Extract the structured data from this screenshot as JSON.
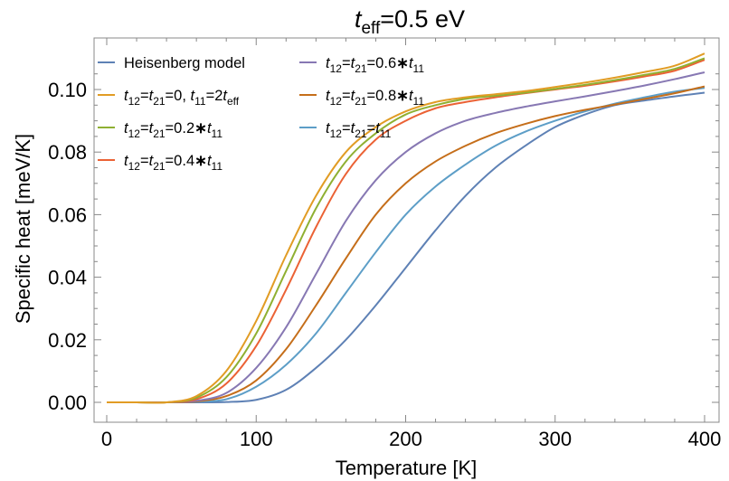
{
  "chart_data": {
    "type": "line",
    "title": {
      "main": "t",
      "sub": "eff",
      "rest": "=0.5 eV"
    },
    "xlabel": "Temperature [K]",
    "ylabel": "Specific heat [meV/K]",
    "xlim": [
      0,
      400
    ],
    "ylim": [
      0,
      0.11
    ],
    "xticks": [
      0,
      100,
      200,
      300,
      400
    ],
    "xtick_labels": [
      "0",
      "100",
      "200",
      "300",
      "400"
    ],
    "yticks": [
      0,
      0.02,
      0.04,
      0.06,
      0.08,
      0.1
    ],
    "ytick_labels": [
      "0.00",
      "0.02",
      "0.04",
      "0.06",
      "0.08",
      "0.10"
    ],
    "grid": false,
    "legend_position": "top-left",
    "legend_columns": 2,
    "x": [
      0,
      20,
      40,
      60,
      80,
      100,
      120,
      140,
      160,
      180,
      200,
      220,
      240,
      260,
      280,
      300,
      320,
      340,
      360,
      380,
      400
    ],
    "series": [
      {
        "name": "Heisenberg model",
        "label": [
          {
            "t": "Heisenberg model"
          }
        ],
        "color": "#5e81b5",
        "values": [
          0,
          0,
          0,
          0,
          0.0001,
          0.0008,
          0.004,
          0.011,
          0.02,
          0.031,
          0.043,
          0.055,
          0.066,
          0.075,
          0.082,
          0.088,
          0.092,
          0.095,
          0.0965,
          0.0978,
          0.099
        ]
      },
      {
        "name": "t12=t21=0, t11=2teff",
        "label": [
          {
            "t": "t",
            "i": true
          },
          {
            "t": "12",
            "s": "sub"
          },
          {
            "t": "="
          },
          {
            "t": "t",
            "i": true
          },
          {
            "t": "21",
            "s": "sub"
          },
          {
            "t": "=0, "
          },
          {
            "t": "t",
            "i": true
          },
          {
            "t": "11",
            "s": "sub"
          },
          {
            "t": "=2"
          },
          {
            "t": "t",
            "i": true
          },
          {
            "t": "eff",
            "s": "sub"
          }
        ],
        "color": "#e19c24",
        "values": [
          0,
          0,
          0,
          0.002,
          0.01,
          0.026,
          0.047,
          0.066,
          0.08,
          0.088,
          0.093,
          0.096,
          0.0975,
          0.0985,
          0.0995,
          0.1008,
          0.1022,
          0.1038,
          0.1056,
          0.1076,
          0.1115
        ]
      },
      {
        "name": "t12=t21=0.2*t11",
        "label": [
          {
            "t": "t",
            "i": true
          },
          {
            "t": "12",
            "s": "sub"
          },
          {
            "t": "="
          },
          {
            "t": "t",
            "i": true
          },
          {
            "t": "21",
            "s": "sub"
          },
          {
            "t": "=0.2"
          },
          {
            "t": "∗",
            "b": true
          },
          {
            "t": "t",
            "i": true
          },
          {
            "t": "11",
            "s": "sub"
          }
        ],
        "color": "#8fb032",
        "values": [
          0,
          0,
          0,
          0.0015,
          0.008,
          0.022,
          0.042,
          0.062,
          0.077,
          0.086,
          0.092,
          0.095,
          0.097,
          0.098,
          0.099,
          0.1002,
          0.1015,
          0.103,
          0.1047,
          0.1066,
          0.11
        ]
      },
      {
        "name": "t12=t21=0.4*t11",
        "label": [
          {
            "t": "t",
            "i": true
          },
          {
            "t": "12",
            "s": "sub"
          },
          {
            "t": "="
          },
          {
            "t": "t",
            "i": true
          },
          {
            "t": "21",
            "s": "sub"
          },
          {
            "t": "=0.4"
          },
          {
            "t": "∗",
            "b": true
          },
          {
            "t": "t",
            "i": true
          },
          {
            "t": "11",
            "s": "sub"
          }
        ],
        "color": "#eb6235",
        "values": [
          0,
          0,
          0,
          0.001,
          0.006,
          0.018,
          0.036,
          0.056,
          0.073,
          0.084,
          0.09,
          0.094,
          0.096,
          0.0975,
          0.0988,
          0.1,
          0.1012,
          0.1026,
          0.1042,
          0.106,
          0.1095
        ]
      },
      {
        "name": "t12=t21=0.6*t11",
        "label": [
          {
            "t": "t",
            "i": true
          },
          {
            "t": "12",
            "s": "sub"
          },
          {
            "t": "="
          },
          {
            "t": "t",
            "i": true
          },
          {
            "t": "21",
            "s": "sub"
          },
          {
            "t": "=0.6"
          },
          {
            "t": "∗",
            "b": true
          },
          {
            "t": "t",
            "i": true
          },
          {
            "t": "11",
            "s": "sub"
          }
        ],
        "color": "#8778b3",
        "values": [
          0,
          0,
          0,
          0.0005,
          0.003,
          0.011,
          0.024,
          0.041,
          0.058,
          0.071,
          0.08,
          0.086,
          0.09,
          0.0925,
          0.0945,
          0.0962,
          0.0978,
          0.0995,
          0.1013,
          0.1033,
          0.1055
        ]
      },
      {
        "name": "t12=t21=0.8*t11",
        "label": [
          {
            "t": "t",
            "i": true
          },
          {
            "t": "12",
            "s": "sub"
          },
          {
            "t": "="
          },
          {
            "t": "t",
            "i": true
          },
          {
            "t": "21",
            "s": "sub"
          },
          {
            "t": "=0.8"
          },
          {
            "t": "∗",
            "b": true
          },
          {
            "t": "t",
            "i": true
          },
          {
            "t": "11",
            "s": "sub"
          }
        ],
        "color": "#c56e1a",
        "values": [
          0,
          0,
          0,
          0.0003,
          0.002,
          0.007,
          0.017,
          0.031,
          0.046,
          0.06,
          0.07,
          0.077,
          0.082,
          0.086,
          0.089,
          0.0915,
          0.0935,
          0.0952,
          0.097,
          0.0988,
          0.101
        ]
      },
      {
        "name": "t12=t21=t11",
        "label": [
          {
            "t": "t",
            "i": true
          },
          {
            "t": "12",
            "s": "sub"
          },
          {
            "t": "="
          },
          {
            "t": "t",
            "i": true
          },
          {
            "t": "21",
            "s": "sub"
          },
          {
            "t": "="
          },
          {
            "t": "t",
            "i": true
          },
          {
            "t": "11",
            "s": "sub"
          }
        ],
        "color": "#5d9ec7",
        "values": [
          0,
          0,
          0,
          0.0002,
          0.001,
          0.005,
          0.012,
          0.022,
          0.035,
          0.048,
          0.06,
          0.069,
          0.076,
          0.082,
          0.0865,
          0.09,
          0.093,
          0.0955,
          0.0975,
          0.0993,
          0.1005
        ]
      }
    ]
  }
}
